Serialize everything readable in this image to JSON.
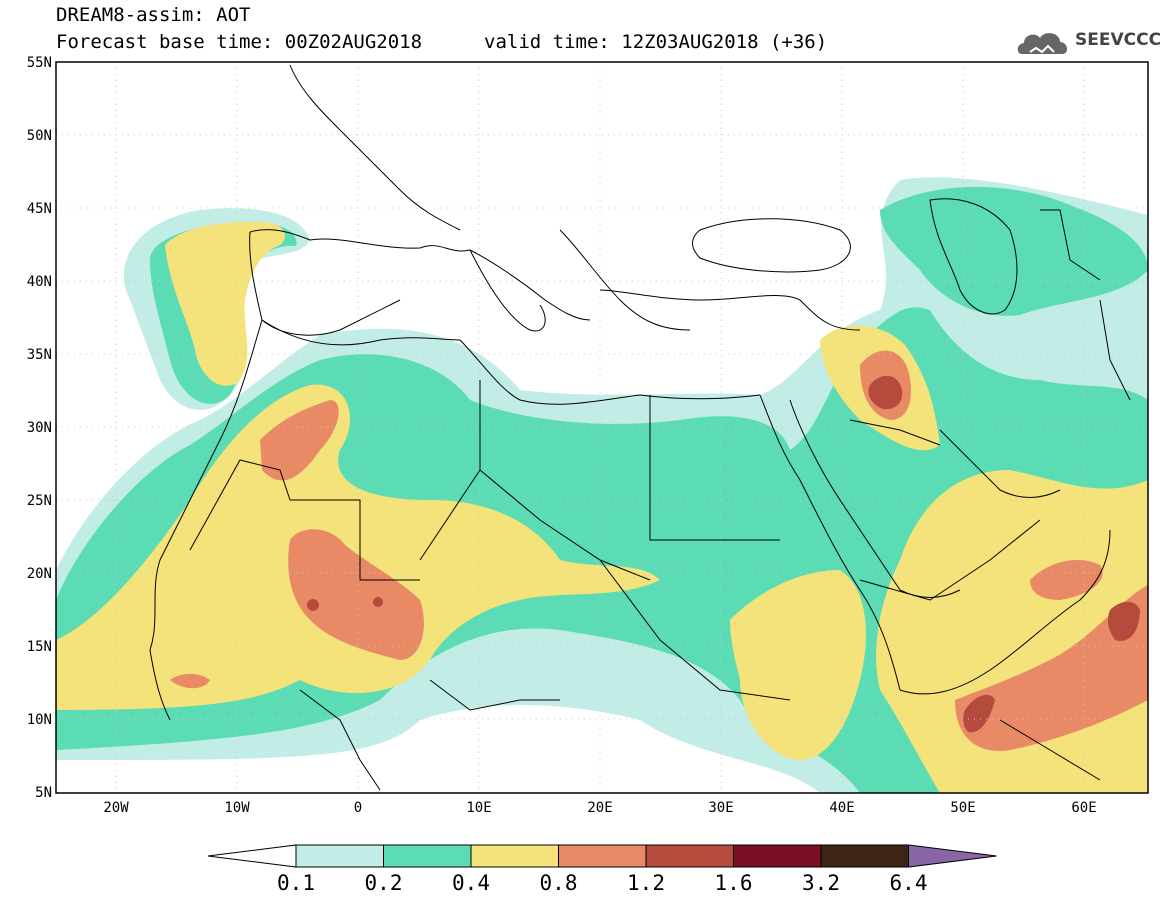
{
  "header": {
    "title": "DREAM8-assim: AOT",
    "base_time": "Forecast base time: 00Z02AUG2018",
    "valid_time": "valid time: 12Z03AUG2018 (+36)",
    "logo_text": "SEEVCCC"
  },
  "map": {
    "lat_labels": [
      "55N",
      "50N",
      "45N",
      "40N",
      "35N",
      "30N",
      "25N",
      "20N",
      "15N",
      "10N",
      "5N"
    ],
    "lon_labels": [
      "20W",
      "10W",
      "0",
      "10E",
      "20E",
      "30E",
      "40E",
      "50E",
      "60E"
    ]
  },
  "legend": {
    "labels": [
      "0.1",
      "0.2",
      "0.4",
      "0.8",
      "1.2",
      "1.6",
      "3.2",
      "6.4"
    ],
    "colors": [
      "#ffffff",
      "#c2ede6",
      "#5bdcb5",
      "#f4e27a",
      "#e98a66",
      "#b44b3c",
      "#7a0e25",
      "#3e2414",
      "#8a66a8"
    ]
  },
  "colors": {
    "very_low": "#c2ede6",
    "low": "#5bdcb5",
    "medium": "#f4e27a",
    "high": "#e98a66",
    "very_high": "#b44b3c",
    "extreme": "#7a0e25"
  }
}
